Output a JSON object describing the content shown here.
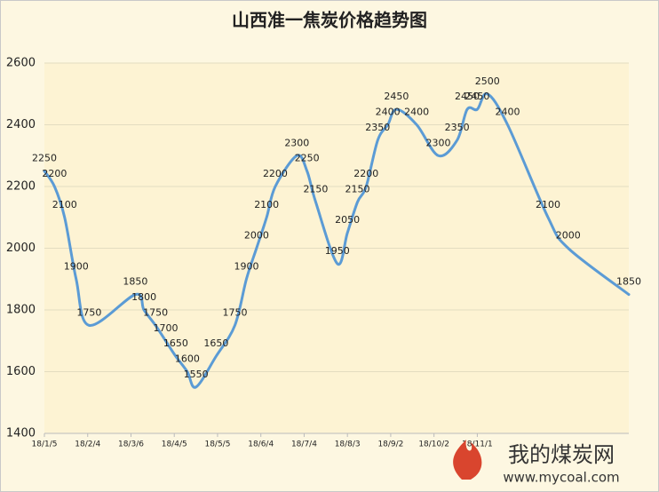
{
  "chart_data": {
    "type": "line",
    "title": "山西准一焦炭价格趋势图",
    "x": [
      0,
      7,
      14,
      22,
      31,
      63,
      69,
      77,
      84,
      91,
      99,
      105,
      119,
      132,
      140,
      147,
      154,
      160,
      175,
      182,
      188,
      203,
      210,
      217,
      223,
      231,
      238,
      244,
      258,
      273,
      286,
      293,
      300,
      307,
      321,
      349,
      363,
      405
    ],
    "series": [
      {
        "color": "#5b9bd5",
        "values": [
          2250,
          2200,
          2100,
          1900,
          1750,
          1850,
          1800,
          1750,
          1700,
          1650,
          1600,
          1550,
          1650,
          1750,
          1900,
          2000,
          2100,
          2200,
          2300,
          2250,
          2150,
          1950,
          2050,
          2150,
          2200,
          2350,
          2400,
          2450,
          2400,
          2300,
          2350,
          2450,
          2450,
          2500,
          2400,
          2100,
          2000,
          1850
        ]
      }
    ],
    "xlim": [
      0,
      405
    ],
    "xticks": [
      {
        "value": 0,
        "label": "18/1/5"
      },
      {
        "value": 30,
        "label": "18/2/4"
      },
      {
        "value": 60,
        "label": "18/3/6"
      },
      {
        "value": 90,
        "label": "18/4/5"
      },
      {
        "value": 120,
        "label": "18/5/5"
      },
      {
        "value": 150,
        "label": "18/6/4"
      },
      {
        "value": 180,
        "label": "18/7/4"
      },
      {
        "value": 210,
        "label": "18/8/3"
      },
      {
        "value": 240,
        "label": "18/9/2"
      },
      {
        "value": 270,
        "label": "18/10/2"
      },
      {
        "value": 300,
        "label": "18/11/1"
      }
    ],
    "ylim": [
      1400,
      2600
    ],
    "yticks": [
      1400,
      1600,
      1800,
      2000,
      2200,
      2400,
      2600
    ],
    "grid": true,
    "logo": {
      "name": "我的煤炭网",
      "url": "www.mycoal.com"
    }
  }
}
